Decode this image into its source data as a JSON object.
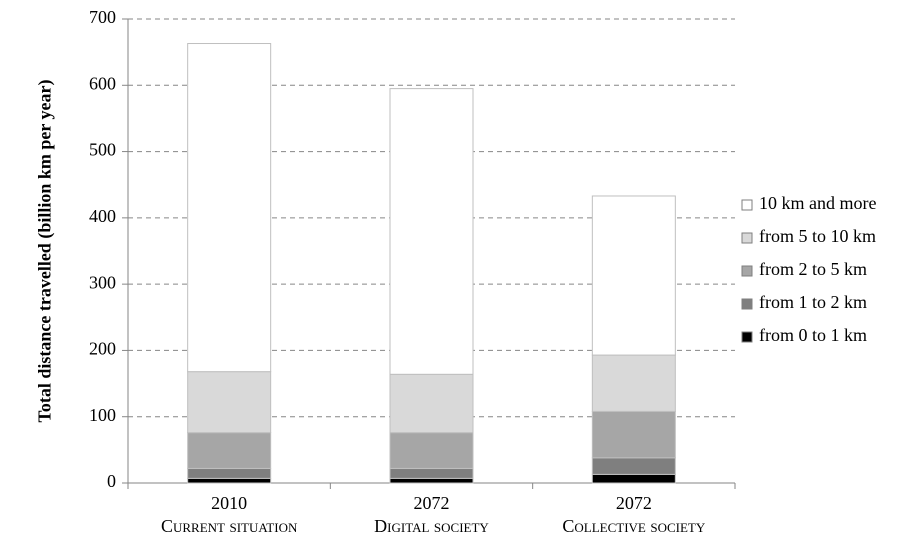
{
  "chart_data": {
    "type": "stacked_bar",
    "y_axis_label": "Total distance travelled (billion km per year)",
    "categories": [
      "2010",
      "2072",
      "2072"
    ],
    "category_subtitles": [
      "Current situation",
      "Digital society",
      "Collective society"
    ],
    "series": [
      {
        "name": "from 0 to 1 km",
        "color": "#000000",
        "values": [
          7,
          7,
          13
        ]
      },
      {
        "name": "from 1 to 2 km",
        "color": "#7f7f7f",
        "values": [
          15,
          15,
          25
        ]
      },
      {
        "name": "from 2 to 5 km",
        "color": "#a6a6a6",
        "values": [
          54,
          54,
          70
        ]
      },
      {
        "name": "from 5 to 10 km",
        "color": "#d9d9d9",
        "values": [
          92,
          88,
          85
        ]
      },
      {
        "name": "10 km and more",
        "color": "#ffffff",
        "values": [
          495,
          431,
          240
        ]
      }
    ],
    "ylim": [
      0,
      700
    ],
    "yticks": [
      0,
      100,
      200,
      300,
      400,
      500,
      600,
      700
    ],
    "grid": true
  }
}
